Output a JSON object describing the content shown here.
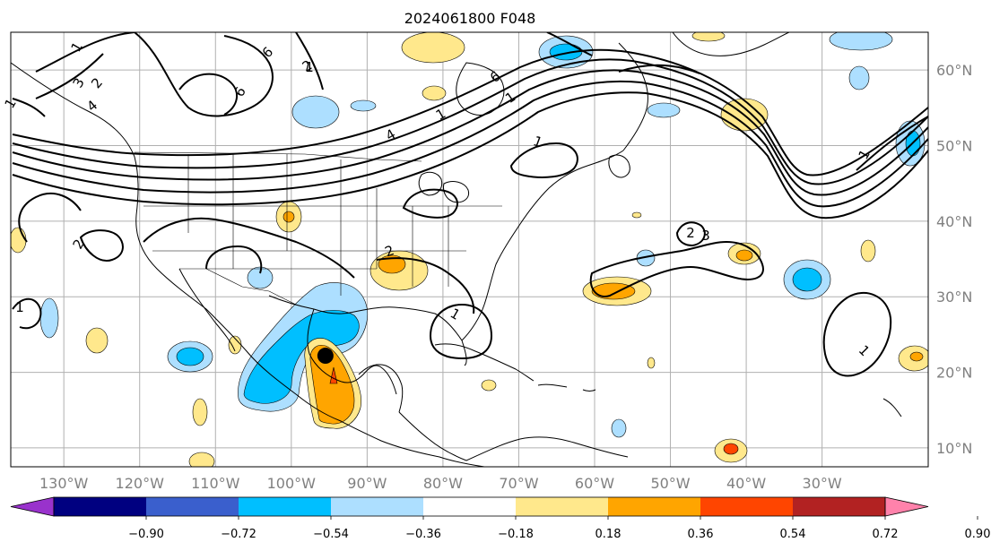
{
  "title": "2024061800 F048",
  "map": {
    "lon_range": [
      -137,
      -16
    ],
    "lat_range": [
      7.5,
      65
    ],
    "grid": true,
    "lon_labels": [
      "130°W",
      "120°W",
      "110°W",
      "100°W",
      "90°W",
      "80°W",
      "70°W",
      "60°W",
      "50°W",
      "40°W",
      "30°W"
    ],
    "lat_labels": [
      "60°N",
      "50°N",
      "40°N",
      "30°N",
      "20°N",
      "10°N"
    ],
    "contour_labels": [
      "1",
      "3",
      "2",
      "4",
      "6",
      "6",
      "2",
      "4",
      "1",
      "6",
      "1",
      "1",
      "2",
      "1",
      "2",
      "3",
      "1",
      "2",
      "1",
      "1",
      "1",
      "1"
    ],
    "marker": {
      "lon": -95.5,
      "lat": 22.2,
      "color": "#000000"
    }
  },
  "colorbar": {
    "tick_labels": [
      "−0.90",
      "−0.72",
      "−0.54",
      "−0.36",
      "−0.18",
      "0.18",
      "0.36",
      "0.54",
      "0.72",
      "0.90"
    ],
    "colors": [
      "#9932cc",
      "#000080",
      "#3a5fcd",
      "#00bfff",
      "#addfff",
      "#ffffff",
      "#ffe88c",
      "#ffa500",
      "#ff4500",
      "#b22222",
      "#ff82ab"
    ],
    "extend": "both"
  },
  "colors": {
    "land": "#000000",
    "grid": "#b0b0b0",
    "tick": "#808080"
  }
}
